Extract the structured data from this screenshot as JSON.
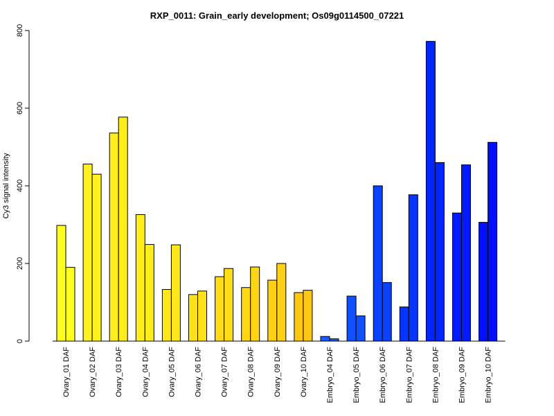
{
  "chart_data": {
    "type": "bar",
    "title": "RXP_0011: Grain_early development; Os09g0114500_07221",
    "xlabel": "",
    "ylabel": "Cy3 signal intensity",
    "ylim": [
      0,
      800
    ],
    "yticks": [
      0,
      200,
      400,
      600,
      800
    ],
    "grid": false,
    "legend": "none",
    "bars_per_category": 2,
    "categories": [
      "Ovary_01 DAF",
      "Ovary_02 DAF",
      "Ovary_03 DAF",
      "Ovary_04 DAF",
      "Ovary_05 DAF",
      "Ovary_06 DAF",
      "Ovary_07 DAF",
      "Ovary_08 DAF",
      "Ovary_09 DAF",
      "Ovary_10 DAF",
      "Embryo_04 DAF",
      "Embryo_05 DAF",
      "Embryo_06 DAF",
      "Embryo_07 DAF",
      "Embryo_08 DAF",
      "Embryo_09 DAF",
      "Embryo_10 DAF"
    ],
    "series": [
      {
        "values": [
          298,
          456,
          536,
          326,
          133,
          120,
          166,
          138,
          157,
          125,
          12,
          116,
          400,
          88,
          772,
          330,
          306
        ]
      },
      {
        "values": [
          190,
          430,
          577,
          249,
          248,
          129,
          187,
          191,
          200,
          131,
          6,
          65,
          151,
          377,
          460,
          454,
          512
        ]
      }
    ],
    "colors": [
      "#ffff22",
      "#fff21e",
      "#ffee1c",
      "#ffee1c",
      "#ffe71a",
      "#ffe118",
      "#ffdc16",
      "#ffd614",
      "#ffd112",
      "#ffc810",
      "#1a5cff",
      "#1150ff",
      "#0a42ff",
      "#0535ff",
      "#0225ff",
      "#011aff",
      "#000fff"
    ]
  }
}
